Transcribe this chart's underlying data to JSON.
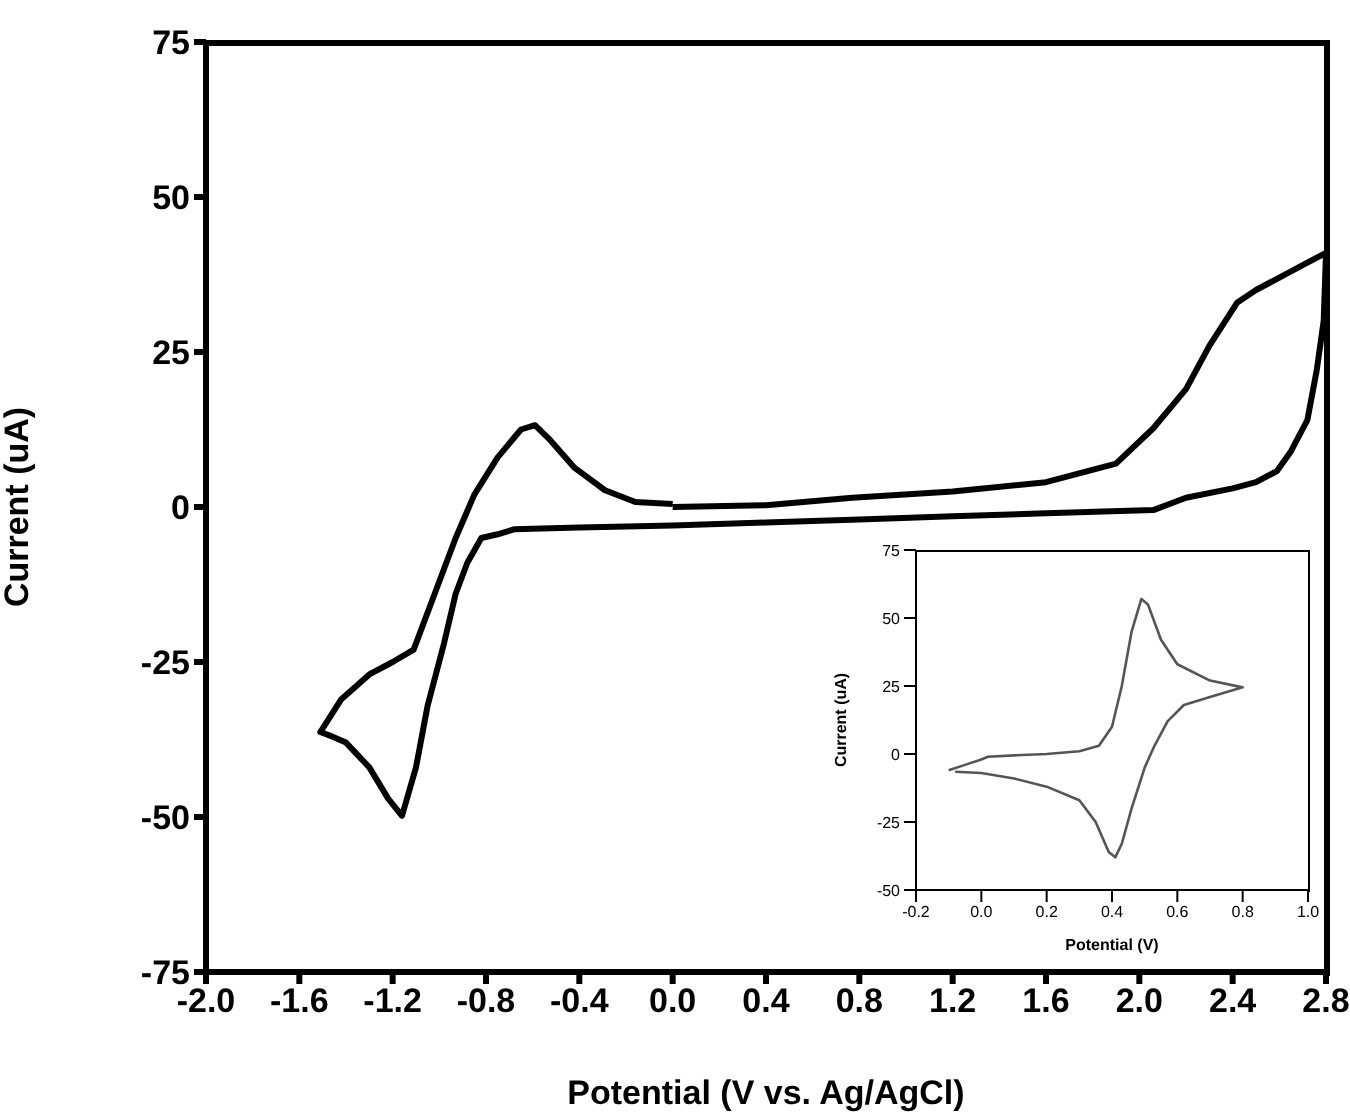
{
  "chart_data": [
    {
      "type": "line",
      "xlabel": "Potential (V vs. Ag/AgCl)",
      "ylabel": "Current (uA)",
      "color": "#000000",
      "x": [
        0,
        0.4,
        0.77,
        1.2,
        1.6,
        1.9,
        2.06,
        2.2,
        2.3,
        2.42,
        2.5,
        2.6,
        2.7,
        2.8,
        2.79,
        2.76,
        2.72,
        2.65,
        2.59,
        2.5,
        2.4,
        2.2,
        2.06,
        1.6,
        1.2,
        0.8,
        0.4,
        0,
        -0.4,
        -0.68,
        -0.75,
        -0.82,
        -0.88,
        -0.93,
        -0.98,
        -1.05,
        -1.1,
        -1.16,
        -1.22,
        -1.3,
        -1.4,
        -1.46,
        -1.51,
        -1.42,
        -1.3,
        -1.2,
        -1.11,
        -1.03,
        -0.93,
        -0.85,
        -0.75,
        -0.65,
        -0.59,
        -0.53,
        -0.42,
        -0.29,
        -0.16,
        0
      ],
      "values": [
        0,
        0.3,
        1.5,
        2.5,
        4,
        7,
        12.7,
        19,
        26,
        33,
        35,
        37,
        39,
        41,
        30,
        22,
        14,
        9,
        5.8,
        4,
        3,
        1.5,
        -0.5,
        -1,
        -1.5,
        -2,
        -2.5,
        -3,
        -3.3,
        -3.6,
        -4.4,
        -5,
        -9,
        -14,
        -22,
        -32,
        -42,
        -49.8,
        -47,
        -42,
        -38,
        -37,
        -36.3,
        -31,
        -27,
        -25,
        -23,
        -15,
        -5,
        2,
        8,
        12.5,
        13.2,
        11,
        6.3,
        2.7,
        0.8,
        0.5
      ],
      "xlim": [
        -2.0,
        2.8
      ],
      "xticks": [
        {
          "value": -2,
          "label": "-2.0"
        },
        -1.6,
        -1.2,
        -0.8,
        -0.4,
        {
          "value": 0,
          "label": "0.0"
        },
        0.4,
        0.8,
        1.2,
        1.6,
        {
          "value": 2,
          "label": "2.0"
        },
        2.4,
        2.8
      ],
      "ylim": [
        -75,
        75
      ],
      "yticks": [
        -75,
        -50,
        -25,
        0,
        25,
        50,
        75
      ]
    },
    {
      "type": "line",
      "xlabel": "Potential (V)",
      "ylabel": "Current (uA)",
      "color": "#555555",
      "x": [
        -0.1,
        -0.05,
        0,
        0.02,
        0.1,
        0.2,
        0.3,
        0.36,
        0.4,
        0.43,
        0.46,
        0.49,
        0.51,
        0.55,
        0.6,
        0.7,
        0.8,
        0.7,
        0.62,
        0.57,
        0.53,
        0.5,
        0.46,
        0.43,
        0.41,
        0.39,
        0.35,
        0.3,
        0.2,
        0.1,
        0,
        -0.08
      ],
      "values": [
        -6,
        -4,
        -2,
        -1,
        -0.5,
        0,
        1,
        3,
        10,
        25,
        45,
        57,
        55,
        42,
        33,
        27,
        24.5,
        21,
        18,
        12,
        3,
        -5,
        -20,
        -33,
        -38,
        -36,
        -25,
        -17,
        -12,
        -9,
        -7,
        -6.5
      ],
      "xlim": [
        -0.2,
        1.0
      ],
      "xticks": [
        -0.2,
        {
          "value": 0,
          "label": "0.0"
        },
        0.2,
        0.4,
        0.6,
        0.8,
        {
          "value": 1,
          "label": "1.0"
        }
      ],
      "ylim": [
        -50,
        75
      ],
      "yticks": [
        -50,
        -25,
        0,
        25,
        50,
        75
      ]
    }
  ]
}
